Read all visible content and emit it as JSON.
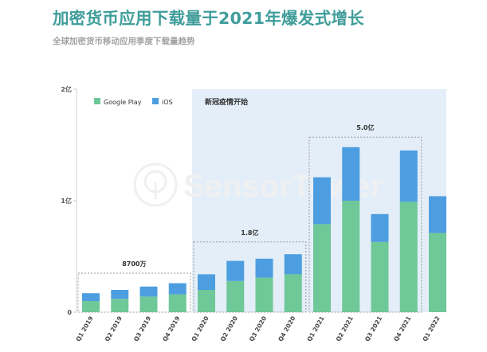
{
  "page": {
    "title": "加密货币应用下载量于2021年爆发式增长",
    "subtitle": "全球加密货币移动应用季度下载量趋势"
  },
  "watermark": {
    "text": "SensorTower"
  },
  "chart_data": {
    "type": "bar",
    "stacked": true,
    "categories": [
      "Q1 2019",
      "Q2 2019",
      "Q3 2019",
      "Q4 2019",
      "Q1 2020",
      "Q2 2020",
      "Q3 2020",
      "Q4 2020",
      "Q1 2021",
      "Q2 2021",
      "Q3 2021",
      "Q4 2021",
      "Q1 2022"
    ],
    "series": [
      {
        "name": "Google Play",
        "color": "#6fc898",
        "values": [
          0.1,
          0.12,
          0.14,
          0.16,
          0.2,
          0.28,
          0.31,
          0.34,
          0.79,
          1.0,
          0.63,
          0.99,
          0.71
        ]
      },
      {
        "name": "iOS",
        "color": "#4d9ee0",
        "values": [
          0.07,
          0.08,
          0.09,
          0.1,
          0.14,
          0.18,
          0.17,
          0.18,
          0.42,
          0.48,
          0.25,
          0.46,
          0.33
        ]
      }
    ],
    "yticks": [
      {
        "value": 0,
        "label": "0"
      },
      {
        "value": 1,
        "label": "1亿"
      },
      {
        "value": 2,
        "label": "2亿"
      }
    ],
    "ylim": [
      0,
      2
    ],
    "legend_position": "top-left",
    "shaded_region": {
      "from_category": "Q1 2020",
      "to_category": "Q1 2022",
      "label": "新冠疫情开始",
      "color": "#e3eef9"
    },
    "group_annotations": [
      {
        "from": "Q1 2019",
        "to": "Q4 2019",
        "label": "8700万",
        "top_value": 0.35
      },
      {
        "from": "Q1 2020",
        "to": "Q4 2020",
        "label": "1.8亿",
        "top_value": 0.63
      },
      {
        "from": "Q1 2021",
        "to": "Q4 2021",
        "label": "5.0亿",
        "top_value": 1.57
      }
    ]
  }
}
